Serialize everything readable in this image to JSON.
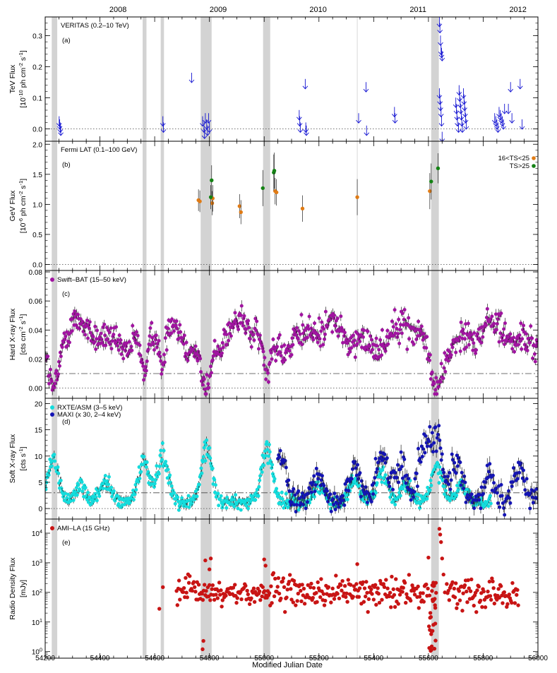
{
  "chart_data": {
    "type": "scatter",
    "x_axis": {
      "label": "Modified Julian Date",
      "range": [
        54200,
        56000
      ],
      "ticks": [
        54200,
        54400,
        54600,
        54800,
        55000,
        55200,
        55400,
        55600,
        55800,
        56000
      ],
      "tick_labels": [
        "54200",
        "54400",
        "54600",
        "54800",
        "55000",
        "55200",
        "55400",
        "55600",
        "55800",
        "56000"
      ]
    },
    "top_axis": {
      "year_labels": [
        {
          "label": "2008",
          "mjd": 54466
        },
        {
          "label": "2009",
          "mjd": 54832
        },
        {
          "label": "2010",
          "mjd": 55197
        },
        {
          "label": "2011",
          "mjd": 55562
        },
        {
          "label": "2012",
          "mjd": 55927
        }
      ]
    },
    "shaded_intervals": [
      [
        54224,
        54244
      ],
      [
        54556,
        54570
      ],
      [
        54622,
        54634
      ],
      [
        54768,
        54808
      ],
      [
        54996,
        55022
      ],
      [
        55610,
        55638
      ]
    ],
    "thin_line_mjd": 55340,
    "panels": [
      {
        "id": "a",
        "panel_label": "(a)",
        "legend": "VERITAS (0.2–10 TeV)",
        "ylabel": [
          "TeV Flux",
          "[10^-10 ph cm^-2 s^-1]"
        ],
        "ylim": [
          -0.04,
          0.36
        ],
        "yticks": [
          0.0,
          0.1,
          0.2,
          0.3
        ],
        "ytick_labels": [
          "0.0",
          "0.1",
          "0.2",
          "0.3"
        ],
        "dotted_lines": [
          0.0
        ],
        "series": [
          {
            "style": "upper_limit_arrow",
            "color": "#1414d2",
            "points": [
              [
                54251,
                0.02
              ],
              [
                54253,
                0.01
              ],
              [
                54255,
                0.0
              ],
              [
                54257,
                -0.01
              ],
              [
                54630,
                0.02
              ],
              [
                54632,
                0.0
              ],
              [
                54735,
                0.16
              ],
              [
                54775,
                0.02
              ],
              [
                54780,
                0.0
              ],
              [
                54782,
                -0.02
              ],
              [
                54785,
                0.03
              ],
              [
                54790,
                0.01
              ],
              [
                54793,
                -0.01
              ],
              [
                54797,
                0.03
              ],
              [
                54800,
                0.0
              ],
              [
                55128,
                0.04
              ],
              [
                55130,
                0.02
              ],
              [
                55132,
                0.0
              ],
              [
                55150,
                0.14
              ],
              [
                55152,
                0.0
              ],
              [
                55154,
                -0.01
              ],
              [
                55345,
                0.03
              ],
              [
                55372,
                0.13
              ],
              [
                55374,
                -0.01
              ],
              [
                55476,
                0.05
              ],
              [
                55478,
                0.03
              ],
              [
                55640,
                0.34
              ],
              [
                55642,
                0.32
              ],
              [
                55644,
                0.28
              ],
              [
                55646,
                0.25
              ],
              [
                55648,
                0.24
              ],
              [
                55650,
                0.23
              ],
              [
                55640,
                0.11
              ],
              [
                55642,
                0.09
              ],
              [
                55644,
                0.07
              ],
              [
                55646,
                0.05
              ],
              [
                55648,
                0.02
              ],
              [
                55650,
                -0.03
              ],
              [
                55700,
                0.08
              ],
              [
                55702,
                0.06
              ],
              [
                55704,
                0.04
              ],
              [
                55706,
                0.02
              ],
              [
                55710,
                0.0
              ],
              [
                55712,
                0.12
              ],
              [
                55714,
                0.1
              ],
              [
                55716,
                0.08
              ],
              [
                55718,
                0.06
              ],
              [
                55720,
                0.04
              ],
              [
                55722,
                0.02
              ],
              [
                55724,
                0.0
              ],
              [
                55728,
                0.11
              ],
              [
                55730,
                0.09
              ],
              [
                55732,
                0.07
              ],
              [
                55734,
                0.05
              ],
              [
                55736,
                0.03
              ],
              [
                55738,
                0.01
              ],
              [
                55842,
                0.03
              ],
              [
                55846,
                0.02
              ],
              [
                55850,
                0.01
              ],
              [
                55854,
                0.0
              ],
              [
                55858,
                0.05
              ],
              [
                55862,
                0.04
              ],
              [
                55866,
                0.03
              ],
              [
                55870,
                0.02
              ],
              [
                55874,
                0.01
              ],
              [
                55878,
                0.06
              ],
              [
                55892,
                0.06
              ],
              [
                55900,
                0.13
              ],
              [
                55905,
                0.03
              ],
              [
                55935,
                0.14
              ],
              [
                55942,
                0.01
              ]
            ]
          }
        ]
      },
      {
        "id": "b",
        "panel_label": "(b)",
        "legend": "Fermi LAT (0.1–100 GeV)",
        "legend_entries": [
          {
            "label": "16<TS<25",
            "color": "#e07b15"
          },
          {
            "label": "TS>25",
            "color": "#148214"
          }
        ],
        "ylabel": [
          "GeV Flux",
          "[10^-6 ph cm^-2 s^-1]"
        ],
        "ylim": [
          -0.1,
          2.05
        ],
        "yticks": [
          0.0,
          0.5,
          1.0,
          1.5,
          2.0
        ],
        "ytick_labels": [
          "0.0",
          "0.5",
          "1.0",
          "1.5",
          "2.0"
        ],
        "dotted_lines": [
          0.0
        ],
        "series": [
          {
            "name": "16<TS<25",
            "color": "#e07b15",
            "points": [
              [
                54760,
                1.07,
                0.18
              ],
              [
                54765,
                1.05,
                0.18
              ],
              [
                54810,
                1.02,
                0.2
              ],
              [
                54812,
                1.1,
                0.22
              ],
              [
                54910,
                0.97,
                0.2
              ],
              [
                54915,
                0.87,
                0.2
              ],
              [
                55040,
                1.22,
                0.22
              ],
              [
                55045,
                1.2,
                0.22
              ],
              [
                55140,
                0.93,
                0.22
              ],
              [
                55340,
                1.12,
                0.3
              ],
              [
                55605,
                1.22,
                0.3
              ]
            ]
          },
          {
            "name": "TS>25",
            "color": "#148214",
            "points": [
              [
                54805,
                1.12,
                0.2
              ],
              [
                54808,
                1.4,
                0.25
              ],
              [
                54995,
                1.27,
                0.3
              ],
              [
                55035,
                1.53,
                0.3
              ],
              [
                55037,
                1.56,
                0.3
              ],
              [
                55610,
                1.38,
                0.3
              ],
              [
                55635,
                1.6,
                0.25
              ]
            ]
          }
        ]
      },
      {
        "id": "c",
        "panel_label": "(c)",
        "legend": "Swift–BAT (15–50 keV)",
        "ylabel": [
          "Hard X-ray Flux",
          "[cts cm^-2 s^-1]"
        ],
        "ylim": [
          -0.007,
          0.081
        ],
        "yticks": [
          0.0,
          0.02,
          0.04,
          0.06,
          0.08
        ],
        "ytick_labels": [
          "0.00",
          "0.02",
          "0.04",
          "0.06",
          "0.08"
        ],
        "dotted_lines": [
          0.0
        ],
        "dashdot_lines": [
          0.01
        ],
        "series": [
          {
            "name": "Swift–BAT (15–50 keV)",
            "color": "#a014a0",
            "model": {
              "base": 0.036,
              "amplitude": 0.012,
              "period_days": 300,
              "phase": 54250,
              "dips": [
                [
                  54230,
                  25,
                  0.034
                ],
                [
                  54563,
                  18,
                  0.03
                ],
                [
                  54628,
                  14,
                  0.028
                ],
                [
                  54788,
                  25,
                  0.034
                ],
                [
                  55010,
                  18,
                  0.028
                ],
                [
                  55624,
                  28,
                  0.036
                ]
              ],
              "scatter": 0.005,
              "sampling_days": 2.4,
              "range": [
                54200,
                56000
              ]
            }
          }
        ]
      },
      {
        "id": "d",
        "panel_label": "(d)",
        "legend_entries": [
          {
            "label": "RXTE/ASM (3–5 keV)",
            "color": "#14dcdc"
          },
          {
            "label": "MAXI (x 30, 2–4 keV)",
            "color": "#1414b4"
          }
        ],
        "ylabel": [
          "Soft X-ray Flux",
          "[cts s^-1]"
        ],
        "ylim": [
          -2,
          21
        ],
        "yticks": [
          0,
          5,
          10,
          15,
          20
        ],
        "ytick_labels": [
          "0",
          "5",
          "10",
          "15",
          "20"
        ],
        "dotted_lines": [
          0
        ],
        "dashdot_lines": [
          3
        ],
        "series": [
          {
            "name": "RXTE/ASM (3–5 keV)",
            "color": "#14dcdc",
            "model": {
              "range": [
                54200,
                55830
              ],
              "peaks": [
                [
                  54230,
                  8
                ],
                [
                  54330,
                  3
                ],
                [
                  54420,
                  4
                ],
                [
                  54560,
                  8
                ],
                [
                  54630,
                  9
                ],
                [
                  54790,
                  10
                ],
                [
                  55010,
                  10
                ],
                [
                  55200,
                  3
                ],
                [
                  55330,
                  4
                ],
                [
                  55430,
                  6
                ],
                [
                  55520,
                  3
                ],
                [
                  55630,
                  7
                ],
                [
                  55720,
                  3
                ]
              ],
              "floor": 1.2,
              "sampling_days": 2.2
            }
          },
          {
            "name": "MAXI (x 30, 2–4 keV)",
            "color": "#1414b4",
            "model": {
              "range": [
                55050,
                56000
              ],
              "peaks": [
                [
                  55060,
                  8
                ],
                [
                  55200,
                  5
                ],
                [
                  55330,
                  6
                ],
                [
                  55430,
                  9
                ],
                [
                  55500,
                  7
                ],
                [
                  55580,
                  11
                ],
                [
                  55630,
                  12
                ],
                [
                  55700,
                  7
                ],
                [
                  55820,
                  5
                ],
                [
                  55930,
                  6
                ]
              ],
              "floor": 1.5,
              "sampling_days": 3.0
            }
          }
        ]
      },
      {
        "id": "e",
        "panel_label": "(e)",
        "legend": "AMI–LA (15 GHz)",
        "ylabel": [
          "Radio Density Flux",
          "[mJy]"
        ],
        "ylim": [
          0.6,
          30000
        ],
        "yscale": "log",
        "yticks": [
          1,
          10,
          100,
          1000,
          10000
        ],
        "ytick_labels": [
          "10^0",
          "10^1",
          "10^2",
          "10^3",
          "10^4"
        ],
        "series": [
          {
            "name": "AMI–LA (15 GHz)",
            "color": "#c81414",
            "model": {
              "range": [
                54680,
                55930
              ],
              "typical": 100,
              "log_scatter": 0.35,
              "sampling_days": 3.0,
              "extra_points": [
                [
                  54617,
                  28
                ],
                [
                  54630,
                  150
                ],
                [
                  54775,
                  1.2
                ],
                [
                  54778,
                  2.3
                ],
                [
                  54785,
                  1200
                ],
                [
                  54800,
                  600
                ],
                [
                  54805,
                  1400
                ],
                [
                  55000,
                  1300
                ],
                [
                  55005,
                  800
                ],
                [
                  55340,
                  900
                ],
                [
                  55600,
                  1500
                ],
                [
                  55612,
                  1.5
                ],
                [
                  55615,
                  5
                ],
                [
                  55618,
                  8
                ],
                [
                  55625,
                  30
                ],
                [
                  55640,
                  14000
                ],
                [
                  55643,
                  9000
                ],
                [
                  55646,
                  5000
                ],
                [
                  55650,
                  1400
                ],
                [
                  55655,
                  400
                ],
                [
                  55660,
                  100
                ]
              ]
            }
          }
        ]
      }
    ]
  }
}
